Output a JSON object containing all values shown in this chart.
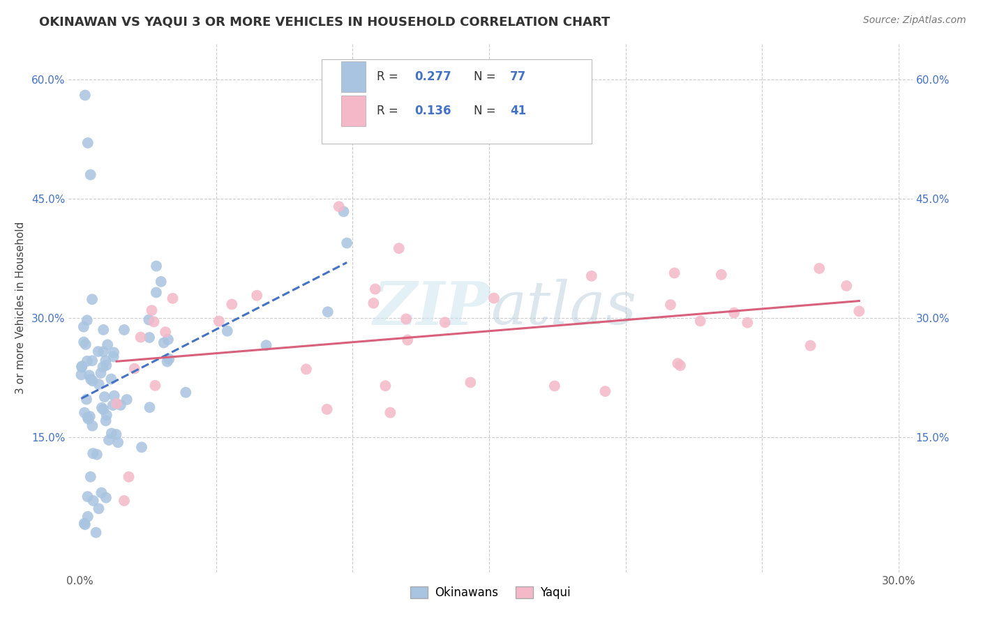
{
  "title": "OKINAWAN VS YAQUI 3 OR MORE VEHICLES IN HOUSEHOLD CORRELATION CHART",
  "source_text": "Source: ZipAtlas.com",
  "ylabel": "3 or more Vehicles in Household",
  "okinawan_color": "#a8c4e0",
  "yaqui_color": "#f4b8c8",
  "okinawan_line_color": "#4472c4",
  "yaqui_line_color": "#d9607a",
  "background_color": "#ffffff",
  "watermark": "ZIPatlas",
  "grid_color": "#cccccc",
  "tick_color": "#4472c4",
  "title_color": "#333333",
  "legend_r1_val": "0.277",
  "legend_n1_val": "77",
  "legend_r2_val": "0.136",
  "legend_n2_val": "41"
}
